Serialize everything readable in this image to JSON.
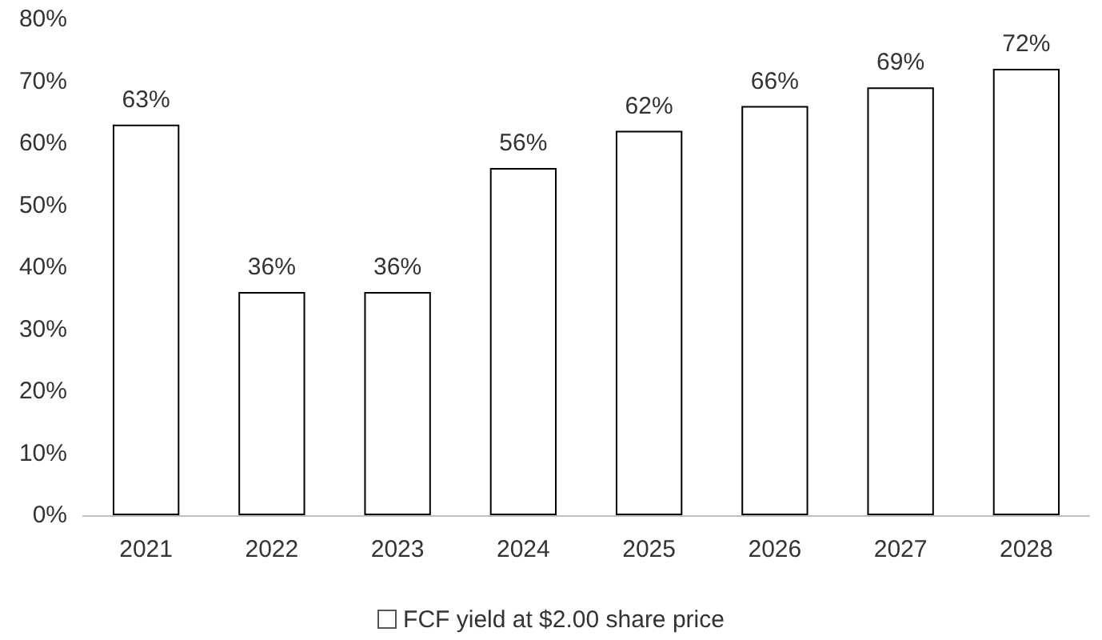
{
  "chart_data": {
    "type": "bar",
    "categories": [
      "2021",
      "2022",
      "2023",
      "2024",
      "2025",
      "2026",
      "2027",
      "2028"
    ],
    "series": [
      {
        "name": "FCF yield at $2.00 share price",
        "color": "#ffffff",
        "values": [
          63,
          36,
          36,
          56,
          62,
          66,
          69,
          72
        ],
        "value_labels": [
          "63%",
          "36%",
          "36%",
          "56%",
          "62%",
          "66%",
          "69%",
          "72%"
        ]
      }
    ],
    "ylim": [
      0,
      80
    ],
    "yticks": [
      {
        "value": 0,
        "label": "0%"
      },
      {
        "value": 10,
        "label": "10%"
      },
      {
        "value": 20,
        "label": "20%"
      },
      {
        "value": 30,
        "label": "30%"
      },
      {
        "value": 40,
        "label": "40%"
      },
      {
        "value": 50,
        "label": "50%"
      },
      {
        "value": 60,
        "label": "60%"
      },
      {
        "value": 70,
        "label": "70%"
      },
      {
        "value": 80,
        "label": "80%"
      }
    ],
    "grid": false,
    "legend": "bottom"
  }
}
